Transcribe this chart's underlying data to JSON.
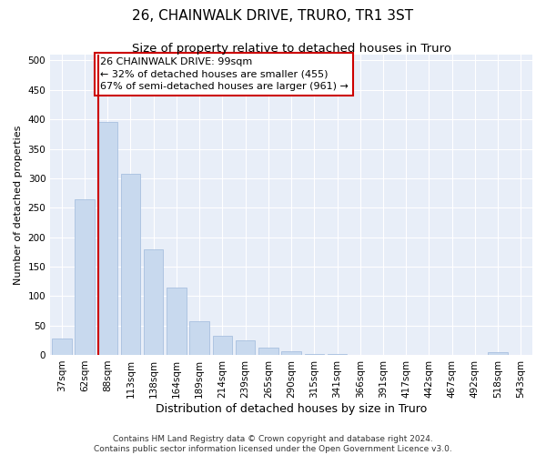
{
  "title": "26, CHAINWALK DRIVE, TRURO, TR1 3ST",
  "subtitle": "Size of property relative to detached houses in Truro",
  "xlabel": "Distribution of detached houses by size in Truro",
  "ylabel": "Number of detached properties",
  "categories": [
    "37sqm",
    "62sqm",
    "88sqm",
    "113sqm",
    "138sqm",
    "164sqm",
    "189sqm",
    "214sqm",
    "239sqm",
    "265sqm",
    "290sqm",
    "315sqm",
    "341sqm",
    "366sqm",
    "391sqm",
    "417sqm",
    "442sqm",
    "467sqm",
    "492sqm",
    "518sqm",
    "543sqm"
  ],
  "values": [
    28,
    265,
    395,
    308,
    180,
    115,
    57,
    32,
    24,
    13,
    6,
    2,
    1,
    0,
    0,
    0,
    0,
    0,
    0,
    4,
    0
  ],
  "bar_color": "#c8d9ee",
  "bar_edge_color": "#a8c0df",
  "property_line_index": 2,
  "property_line_color": "#cc0000",
  "annotation_line1": "26 CHAINWALK DRIVE: 99sqm",
  "annotation_line2": "← 32% of detached houses are smaller (455)",
  "annotation_line3": "67% of semi-detached houses are larger (961) →",
  "annotation_box_color": "#ffffff",
  "annotation_box_edge_color": "#cc0000",
  "ylim": [
    0,
    510
  ],
  "yticks": [
    0,
    50,
    100,
    150,
    200,
    250,
    300,
    350,
    400,
    450,
    500
  ],
  "background_color": "#e8eef8",
  "footer_line1": "Contains HM Land Registry data © Crown copyright and database right 2024.",
  "footer_line2": "Contains public sector information licensed under the Open Government Licence v3.0.",
  "title_fontsize": 11,
  "subtitle_fontsize": 9.5,
  "xlabel_fontsize": 9,
  "ylabel_fontsize": 8,
  "tick_fontsize": 7.5,
  "annotation_fontsize": 8,
  "footer_fontsize": 6.5
}
